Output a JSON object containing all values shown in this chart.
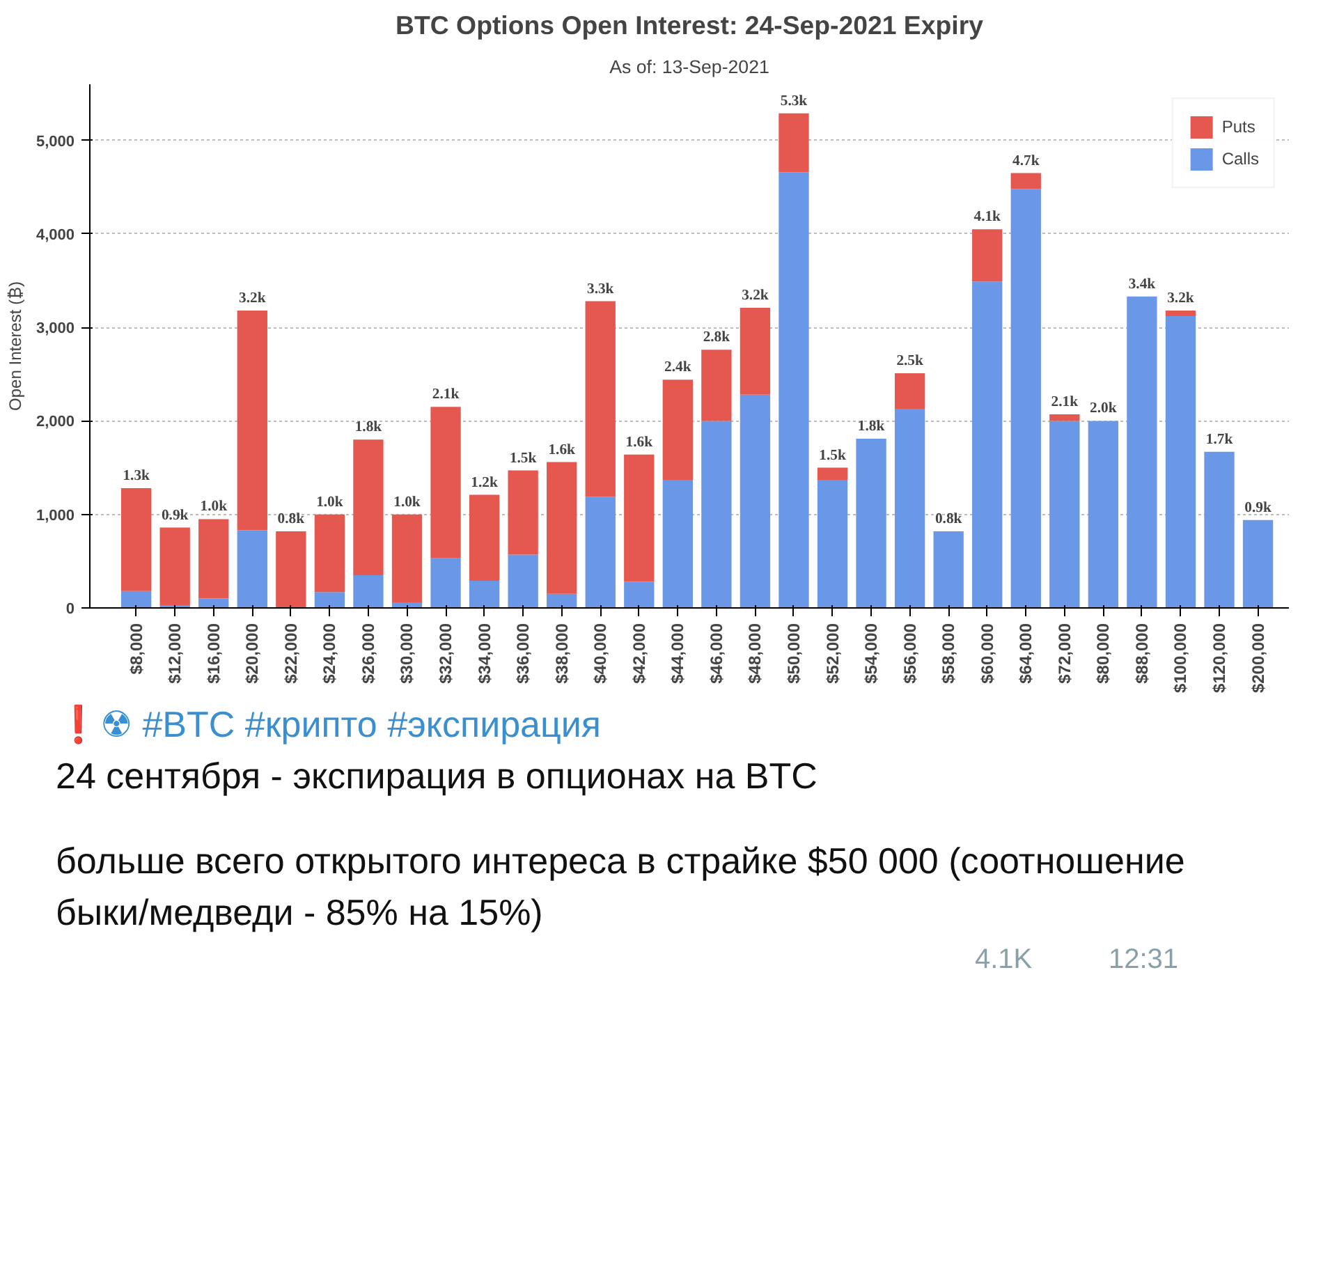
{
  "chart_data": {
    "type": "bar",
    "stacked": true,
    "title": "BTC Options Open Interest: 24-Sep-2021 Expiry",
    "subtitle": "As of: 13-Sep-2021",
    "ylabel": "Open Interest (₿)",
    "categories": [
      "$8,000",
      "$12,000",
      "$16,000",
      "$20,000",
      "$22,000",
      "$24,000",
      "$26,000",
      "$30,000",
      "$32,000",
      "$34,000",
      "$36,000",
      "$38,000",
      "$40,000",
      "$42,000",
      "$44,000",
      "$46,000",
      "$48,000",
      "$50,000",
      "$52,000",
      "$54,000",
      "$56,000",
      "$58,000",
      "$60,000",
      "$64,000",
      "$72,000",
      "$80,000",
      "$88,000",
      "$100,000",
      "$120,000",
      "$200,000"
    ],
    "series": [
      {
        "name": "Calls",
        "color": "#6a98e6",
        "values": [
          180,
          30,
          100,
          830,
          0,
          170,
          350,
          60,
          530,
          290,
          570,
          150,
          1190,
          280,
          1370,
          2000,
          2280,
          4660,
          1370,
          1810,
          2130,
          820,
          3490,
          4480,
          2000,
          2000,
          3330,
          3120,
          1670,
          940
        ]
      },
      {
        "name": "Puts",
        "color": "#e4584f",
        "values": [
          1100,
          830,
          850,
          2350,
          820,
          830,
          1450,
          940,
          1620,
          920,
          900,
          1410,
          2090,
          1360,
          1070,
          760,
          930,
          630,
          130,
          0,
          380,
          0,
          560,
          170,
          70,
          0,
          0,
          60,
          0,
          0
        ]
      }
    ],
    "totals": [
      "1.3k",
      "0.9k",
      "1.0k",
      "3.2k",
      "0.8k",
      "1.0k",
      "1.8k",
      "1.0k",
      "2.1k",
      "1.2k",
      "1.5k",
      "1.6k",
      "3.3k",
      "1.6k",
      "2.4k",
      "2.8k",
      "3.2k",
      "5.3k",
      "1.5k",
      "1.8k",
      "2.5k",
      "0.8k",
      "4.1k",
      "4.7k",
      "2.1k",
      "2.0k",
      "3.4k",
      "3.2k",
      "1.7k",
      "0.9k"
    ],
    "ylim": [
      0,
      5600
    ],
    "yticks": [
      {
        "value": 0,
        "label": "0"
      },
      {
        "value": 1000,
        "label": "1,000"
      },
      {
        "value": 2000,
        "label": "2,000"
      },
      {
        "value": 3000,
        "label": "3,000"
      },
      {
        "value": 4000,
        "label": "4,000"
      },
      {
        "value": 5000,
        "label": "5,000"
      }
    ],
    "grid": "y",
    "legend": "top right",
    "annotations": [
      "❗☢ #BTC #крипто #экспирация",
      "24 сентября -  экспирация в опционах на BTC",
      "больше всего открытого интереса в страйке $50 000 (соотношение быки/медведи - 85% на 15%)",
      "4.1K",
      "12:31"
    ]
  }
}
